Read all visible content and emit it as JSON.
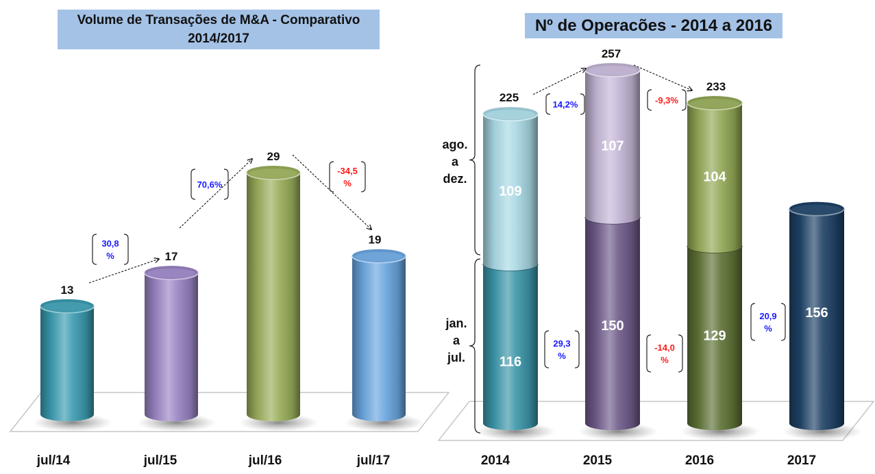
{
  "colors": {
    "title_bg": "#a4c2e6",
    "positive": "#1a1aff",
    "negative": "#ff1a1a",
    "label": "#111111"
  },
  "chart_data": [
    {
      "type": "bar",
      "style": "3d-cylinder",
      "title": "Volume de Transações de M&A - Comparativo 2014/2017",
      "title_lines": [
        "Volume de Transações de M&A - Comparativo",
        "2014/2017"
      ],
      "categories": [
        "jul/14",
        "jul/15",
        "jul/16",
        "jul/17"
      ],
      "values": [
        13,
        17,
        29,
        19
      ],
      "bar_colors": [
        "#3a9bb0",
        "#9a84c4",
        "#9aae5a",
        "#6aa6e0"
      ],
      "ylim": [
        0,
        32
      ],
      "grid": false,
      "changes": [
        {
          "from": "jul/14",
          "to": "jul/15",
          "label": [
            "30,8",
            "%"
          ],
          "sign": "positive"
        },
        {
          "from": "jul/15",
          "to": "jul/16",
          "label": [
            "70,6%"
          ],
          "sign": "positive"
        },
        {
          "from": "jul/16",
          "to": "jul/17",
          "label": [
            "-34,5",
            "%"
          ],
          "sign": "negative"
        }
      ]
    },
    {
      "type": "bar",
      "style": "3d-cylinder-stacked",
      "title": "Nº de Operacões  - 2014 a 2016",
      "categories": [
        "2014",
        "2015",
        "2016",
        "2017"
      ],
      "series": [
        {
          "name": "jan. a jul.",
          "name_lines": [
            "jan.",
            "a",
            "jul."
          ],
          "values": [
            116,
            150,
            129,
            156
          ],
          "colors": [
            "#3a95a8",
            "#6e5a8a",
            "#5e7236",
            "#1e4266"
          ]
        },
        {
          "name": "ago. a dez.",
          "name_lines": [
            "ago.",
            "a",
            "dez."
          ],
          "values": [
            109,
            107,
            104,
            null
          ],
          "colors": [
            "#a8d8e4",
            "#c4b6d6",
            "#92a856",
            null
          ]
        }
      ],
      "totals": [
        225,
        257,
        233,
        null
      ],
      "ylim": [
        0,
        270
      ],
      "grid": false,
      "changes_total": [
        {
          "from": "2014",
          "to": "2015",
          "label": [
            "14,2%"
          ],
          "sign": "positive"
        },
        {
          "from": "2015",
          "to": "2016",
          "label": [
            "-9,3%"
          ],
          "sign": "negative"
        }
      ],
      "changes_jan_jul": [
        {
          "from": "2014",
          "to": "2015",
          "label": [
            "29,3",
            "%"
          ],
          "sign": "positive"
        },
        {
          "from": "2015",
          "to": "2016",
          "label": [
            "-14,0",
            "%"
          ],
          "sign": "negative"
        },
        {
          "from": "2016",
          "to": "2017",
          "label": [
            "20,9",
            "%"
          ],
          "sign": "positive"
        }
      ]
    }
  ]
}
